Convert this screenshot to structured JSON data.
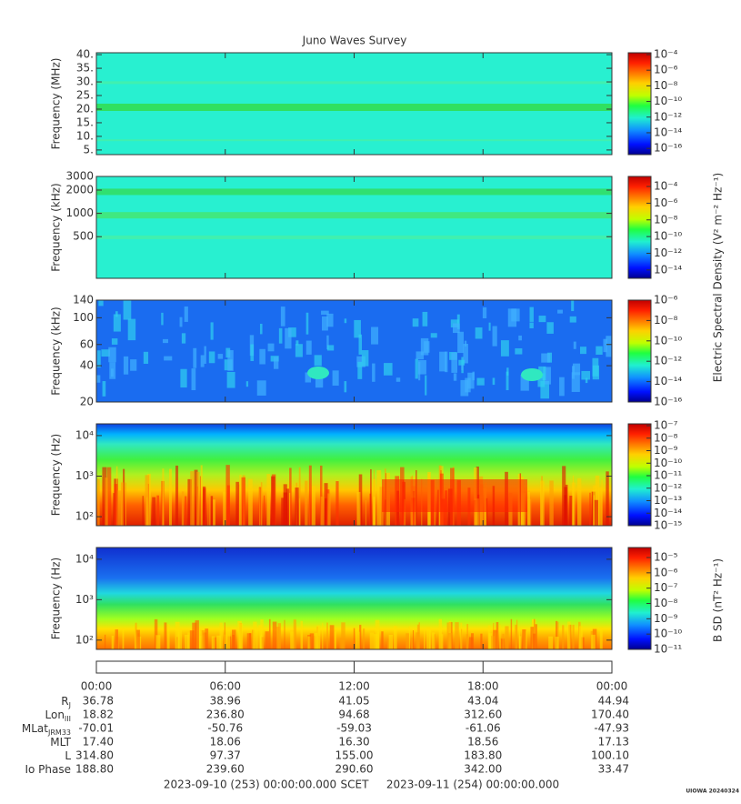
{
  "title": "Juno Waves Survey",
  "chart_data": [
    {
      "type": "heatmap",
      "ylabel": "Frequency (MHz)",
      "ylim": [
        3.3,
        40.7
      ],
      "log": false,
      "yticks": [
        {
          "value": 5,
          "label": "5."
        },
        {
          "value": 10,
          "label": "10."
        },
        {
          "value": 15,
          "label": "15."
        },
        {
          "value": 20,
          "label": "20."
        },
        {
          "value": 25,
          "label": "25."
        },
        {
          "value": 30,
          "label": "30."
        },
        {
          "value": 35,
          "label": "35."
        },
        {
          "value": 40,
          "label": "40."
        }
      ],
      "zlim": [
        1.6e-17,
        0.00017
      ],
      "zticks": [
        {
          "value": 0.0001,
          "label": "10⁻⁴"
        },
        {
          "value": 1e-06,
          "label": "10⁻⁶"
        },
        {
          "value": 1e-08,
          "label": "10⁻⁸"
        },
        {
          "value": 1e-10,
          "label": "10⁻¹⁰"
        },
        {
          "value": 1e-12,
          "label": "10⁻¹²"
        },
        {
          "value": 1e-14,
          "label": "10⁻¹⁴"
        },
        {
          "value": 1e-16,
          "label": "10⁻¹⁶"
        }
      ]
    },
    {
      "type": "heatmap",
      "ylabel": "Frequency (kHz)",
      "ylim": [
        145,
        3000
      ],
      "log": true,
      "yticks": [
        500,
        1000,
        2000,
        3000
      ],
      "zlim": [
        1e-15,
        0.0016
      ],
      "zticks": [
        {
          "value": 0.0001,
          "label": "10⁻⁴"
        },
        {
          "value": 1e-06,
          "label": "10⁻⁶"
        },
        {
          "value": 1e-08,
          "label": "10⁻⁸"
        },
        {
          "value": 1e-10,
          "label": "10⁻¹⁰"
        },
        {
          "value": 1e-12,
          "label": "10⁻¹²"
        },
        {
          "value": 1e-14,
          "label": "10⁻¹⁴"
        }
      ]
    },
    {
      "type": "heatmap",
      "ylabel": "Frequency (kHz)",
      "ylim": [
        20,
        140
      ],
      "log": true,
      "yticks": [
        20,
        40,
        60,
        100,
        140
      ],
      "zlim": [
        1e-16,
        1e-06
      ],
      "zticks": [
        {
          "value": 1e-06,
          "label": "10⁻⁶"
        },
        {
          "value": 1e-08,
          "label": "10⁻⁸"
        },
        {
          "value": 1e-10,
          "label": "10⁻¹⁰"
        },
        {
          "value": 1e-12,
          "label": "10⁻¹²"
        },
        {
          "value": 1e-14,
          "label": "10⁻¹⁴"
        },
        {
          "value": 1e-16,
          "label": "10⁻¹⁶"
        }
      ]
    },
    {
      "type": "heatmap",
      "ylabel": "Frequency (Hz)",
      "ylim": [
        60,
        19500
      ],
      "log": true,
      "yticks": [
        {
          "value": 100,
          "label": "10²"
        },
        {
          "value": 1000,
          "label": "10³"
        },
        {
          "value": 10000,
          "label": "10⁴"
        }
      ],
      "zlim": [
        1e-15,
        1.4e-07
      ],
      "zticks": [
        {
          "value": 1e-07,
          "label": "10⁻⁷"
        },
        {
          "value": 1e-08,
          "label": "10⁻⁸"
        },
        {
          "value": 1e-09,
          "label": "10⁻⁹"
        },
        {
          "value": 1e-10,
          "label": "10⁻¹⁰"
        },
        {
          "value": 1e-11,
          "label": "10⁻¹¹"
        },
        {
          "value": 1e-12,
          "label": "10⁻¹²"
        },
        {
          "value": 1e-13,
          "label": "10⁻¹³"
        },
        {
          "value": 1e-14,
          "label": "10⁻¹⁴"
        },
        {
          "value": 1e-15,
          "label": "10⁻¹⁵"
        }
      ]
    },
    {
      "type": "heatmap",
      "ylabel": "Frequency (Hz)",
      "ylim": [
        59,
        19500
      ],
      "log": true,
      "yticks": [
        {
          "value": 100,
          "label": "10²"
        },
        {
          "value": 1000,
          "label": "10³"
        },
        {
          "value": 10000,
          "label": "10⁴"
        }
      ],
      "zlim": [
        1e-11,
        4.5e-05
      ],
      "zticks": [
        {
          "value": 1e-05,
          "label": "10⁻⁵"
        },
        {
          "value": 1e-06,
          "label": "10⁻⁶"
        },
        {
          "value": 1e-07,
          "label": "10⁻⁷"
        },
        {
          "value": 1e-08,
          "label": "10⁻⁸"
        },
        {
          "value": 1e-09,
          "label": "10⁻⁹"
        },
        {
          "value": 1e-10,
          "label": "10⁻¹⁰"
        },
        {
          "value": 1e-11,
          "label": "10⁻¹¹"
        }
      ]
    }
  ],
  "colorbar_labels": [
    "Electric Spectral Density (V² m⁻² Hz⁻¹)",
    "B SD (nT² Hz⁻¹)"
  ],
  "time_axis": {
    "xlim": [
      0,
      24
    ],
    "xticks": [
      {
        "value": 0,
        "label": "00:00"
      },
      {
        "value": 6,
        "label": "06:00"
      },
      {
        "value": 12,
        "label": "12:00"
      },
      {
        "value": 18,
        "label": "18:00"
      },
      {
        "value": 24,
        "label": "00:00"
      }
    ]
  },
  "ephemeris": [
    {
      "label": "R",
      "sub": "J",
      "values": [
        "36.78",
        "38.96",
        "41.05",
        "43.04",
        "44.94"
      ]
    },
    {
      "label": "Lon",
      "sub": "III",
      "values": [
        "18.82",
        "236.80",
        "94.68",
        "312.60",
        "170.40"
      ]
    },
    {
      "label": "MLat",
      "sub": "JRM33",
      "values": [
        "-70.01",
        "-50.76",
        "-59.03",
        "-61.06",
        "-47.93"
      ]
    },
    {
      "label": "MLT",
      "values": [
        "17.40",
        "18.06",
        "16.30",
        "18.56",
        "17.13"
      ]
    },
    {
      "label": "L",
      "values": [
        "314.80",
        "97.37",
        "155.00",
        "183.80",
        "100.10"
      ]
    },
    {
      "label": "Io Phase",
      "values": [
        "188.80",
        "239.60",
        "290.60",
        "342.00",
        "33.47"
      ]
    }
  ],
  "footer": {
    "start": "2023-09-10 (253) 00:00:00.000",
    "scet": "SCET",
    "end": "2023-09-11 (254) 00:00:00.000"
  },
  "stamp": "UIOWA 20240324"
}
